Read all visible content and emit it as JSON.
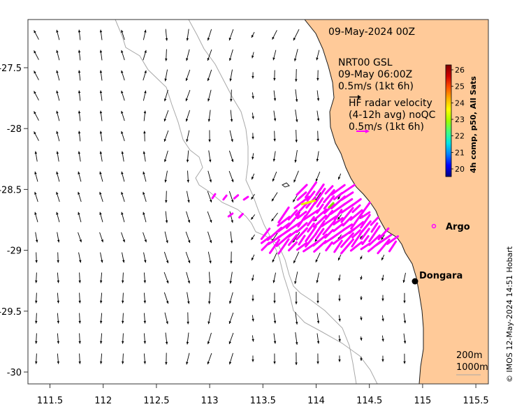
{
  "map": {
    "date_title": "09-May-2024 00Z",
    "model_label": "NRT00 GSL",
    "model_time": "09-May 06:00Z",
    "model_scale": "0.5m/s (1kt 6h)",
    "radar_title": "HF radar velocity",
    "radar_subtitle": "(4-12h avg) noQC",
    "radar_scale": "0.5m/s (1kt 6h)",
    "colorbar_title": "4h comp, p50, All Sats",
    "colorbar_ticks": [
      "20",
      "21",
      "22",
      "23",
      "24",
      "25",
      "26"
    ],
    "colorbar_colors": [
      "#00007f",
      "#0000ff",
      "#0080ff",
      "#00e5e5",
      "#40ff80",
      "#a0ff00",
      "#ffff00",
      "#ffb000",
      "#ff5000",
      "#d00000",
      "#7f0000"
    ],
    "x_ticks": [
      "111.5",
      "112",
      "112.5",
      "113",
      "113.5",
      "114",
      "114.5",
      "115",
      "115.5"
    ],
    "y_ticks": [
      "-27.5",
      "-28",
      "-28.5",
      "-29",
      "-29.5",
      "-30"
    ],
    "places": {
      "argo": "Argo",
      "dongara": "Dongara"
    },
    "depth_contours": [
      "200m",
      "1000m"
    ],
    "credit": "© IMOS 12-May-2024 14:51 Hobart",
    "colors": {
      "land": "#ffca99",
      "radar_arrows": "#ff00ff",
      "model_arrows": "#000000",
      "contours": "#a8a8a8",
      "argo": "#ff00ff"
    },
    "icons": {
      "argo": "argo-float-marker",
      "dongara": "town-marker"
    }
  }
}
